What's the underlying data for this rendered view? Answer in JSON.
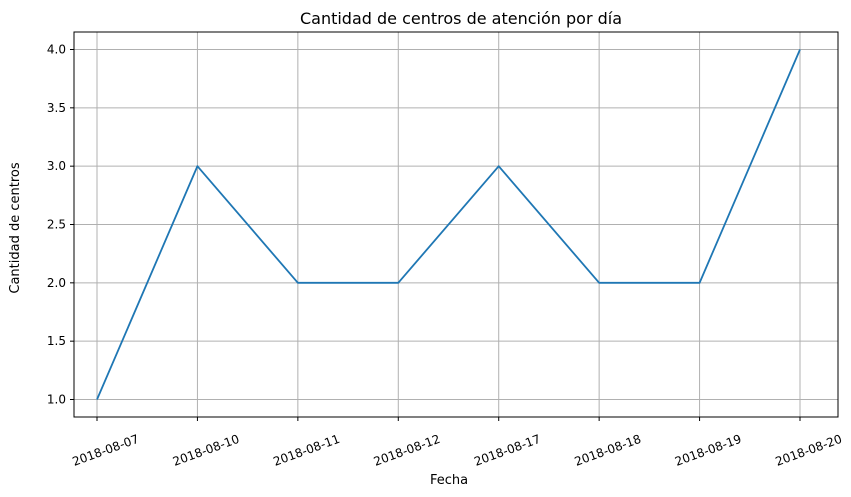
{
  "chart_data": {
    "type": "line",
    "title": "Cantidad de centros de atención por día",
    "xlabel": "Fecha",
    "ylabel": "Cantidad de centros",
    "categories": [
      "2018-08-07",
      "2018-08-10",
      "2018-08-11",
      "2018-08-12",
      "2018-08-17",
      "2018-08-18",
      "2018-08-19",
      "2018-08-20"
    ],
    "series": [
      {
        "values": [
          1,
          3,
          2,
          2,
          3,
          2,
          2,
          4
        ],
        "color": "#1f77b4"
      }
    ],
    "yticks": [
      "1.0",
      "1.5",
      "2.0",
      "2.5",
      "3.0",
      "3.5",
      "4.0"
    ],
    "ylim": [
      0.85,
      4.15
    ],
    "grid": true
  }
}
